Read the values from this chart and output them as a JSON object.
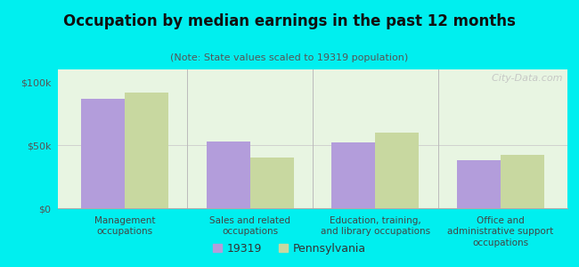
{
  "title": "Occupation by median earnings in the past 12 months",
  "subtitle": "(Note: State values scaled to 19319 population)",
  "categories": [
    "Management\noccupations",
    "Sales and related\noccupations",
    "Education, training,\nand library occupations",
    "Office and\nadministrative support\noccupations"
  ],
  "values_19319": [
    87000,
    53000,
    52000,
    38000
  ],
  "values_pennsylvania": [
    92000,
    40000,
    60000,
    42000
  ],
  "color_19319": "#b39ddb",
  "color_pennsylvania": "#c8d8a0",
  "bar_width": 0.35,
  "ylim": [
    0,
    110000
  ],
  "yticks": [
    0,
    50000,
    100000
  ],
  "ytick_labels": [
    "$0",
    "$50k",
    "$100k"
  ],
  "background_color": "#00efef",
  "plot_bg_color": "#e8f5e2",
  "legend_label_19319": "19319",
  "legend_label_pennsylvania": "Pennsylvania",
  "watermark": "  City-Data.com"
}
